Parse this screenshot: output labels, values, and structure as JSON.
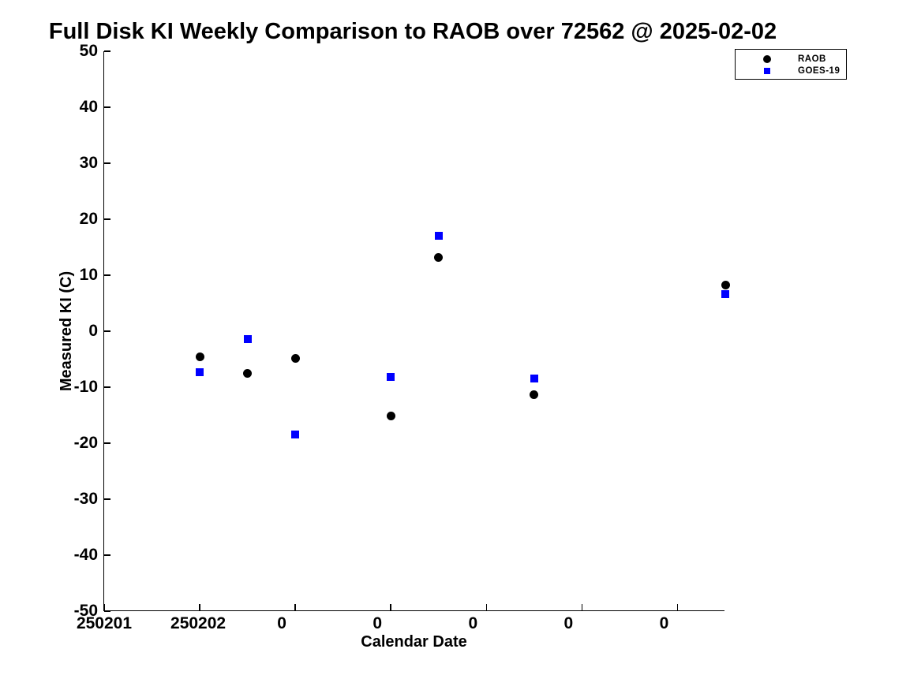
{
  "chart_data": {
    "type": "scatter",
    "title": "Full Disk KI Weekly Comparison to RAOB over 72562 @ 2025-02-02",
    "xlabel": "Calendar Date",
    "ylabel": "Measured KI (C)",
    "xlim": [
      250201,
      250207.5
    ],
    "ylim": [
      -50,
      50
    ],
    "grid": false,
    "legend_position": "top-right-outside",
    "axis_color": "#000000",
    "text_color": "#000000",
    "xticks": {
      "values": [
        250201,
        250202,
        250203,
        250204,
        250205,
        250206,
        250207
      ],
      "labels": [
        "250201",
        "250202",
        "0",
        "0",
        "0",
        "0",
        "0"
      ],
      "label_dx": [
        0,
        -2,
        -17,
        -17,
        -17,
        -17,
        -17
      ]
    },
    "yticks": {
      "values": [
        50,
        40,
        30,
        20,
        10,
        0,
        -10,
        -20,
        -30,
        -40,
        -50
      ],
      "labels": [
        "50",
        "40",
        "30",
        "20",
        "10",
        "0",
        "-10",
        "-20",
        "-30",
        "-40",
        "-50"
      ]
    },
    "series": [
      {
        "name": "RAOB",
        "marker": "circle",
        "color": "#000000",
        "marker_size": 11,
        "points": [
          {
            "x": 250202.0,
            "y": -4.6
          },
          {
            "x": 250202.5,
            "y": -7.5
          },
          {
            "x": 250203.0,
            "y": -4.9
          },
          {
            "x": 250204.0,
            "y": -15.2
          },
          {
            "x": 250204.5,
            "y": 13.1
          },
          {
            "x": 250205.5,
            "y": -11.3
          },
          {
            "x": 250207.5,
            "y": 8.2
          }
        ]
      },
      {
        "name": "GOES-19",
        "marker": "square",
        "color": "#0000ff",
        "marker_size": 10,
        "points": [
          {
            "x": 250202.0,
            "y": -7.3
          },
          {
            "x": 250202.5,
            "y": -1.4
          },
          {
            "x": 250203.0,
            "y": -18.4
          },
          {
            "x": 250204.0,
            "y": -8.2
          },
          {
            "x": 250204.5,
            "y": 17.0
          },
          {
            "x": 250205.5,
            "y": -8.5
          },
          {
            "x": 250207.5,
            "y": 6.6
          }
        ]
      }
    ]
  }
}
